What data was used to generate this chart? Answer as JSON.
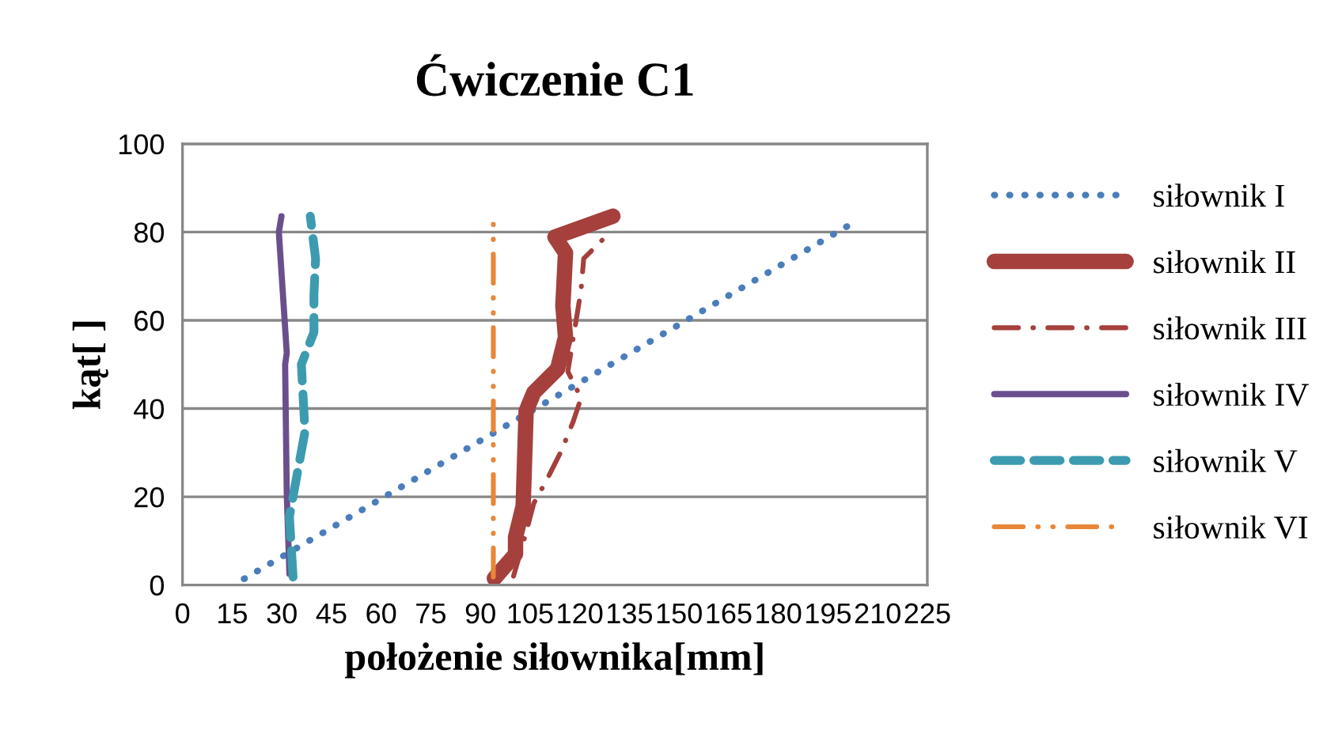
{
  "chart_data": {
    "type": "line",
    "title": "Ćwiczenie C1",
    "xlabel": "położenie siłownika[mm]",
    "ylabel": "kąt[ ]",
    "xlim": [
      0,
      225
    ],
    "xticks": [
      0,
      15,
      30,
      45,
      60,
      75,
      90,
      105,
      120,
      135,
      150,
      165,
      180,
      195,
      210,
      225
    ],
    "ylim": [
      0,
      100
    ],
    "yticks": [
      0,
      20,
      40,
      60,
      80,
      100
    ],
    "grid": "y",
    "legend": "right",
    "marker": "none",
    "series": [
      {
        "name": "siłownik I",
        "color": "#4a7ebb",
        "line_style": "dotted",
        "x": [
          18.6,
          203.5
        ],
        "values": [
          1.4,
          82.5
        ]
      },
      {
        "name": "siłownik II",
        "color": "#a5403d",
        "line_style": "solid",
        "x": [
          94.2,
          100.6,
          100.6,
          102.9,
          103.8,
          106.1,
          113.3,
          115.7,
          114.9,
          115.7,
          112.5,
          130
        ],
        "values": [
          1.5,
          7,
          10.8,
          17.9,
          39.4,
          43.6,
          49,
          56.2,
          63.3,
          75.3,
          78.9,
          83.6
        ]
      },
      {
        "name": "siłownik III",
        "color": "#a5403d",
        "line_style": "dashdot",
        "x": [
          100,
          103.8,
          106.1,
          110.1,
          114.5,
          118,
          120.4,
          116.4,
          120.4,
          121.2,
          126.8
        ],
        "values": [
          2,
          11.9,
          18.5,
          23.9,
          30.5,
          37,
          42.4,
          48.4,
          66.9,
          74,
          78.2
        ]
      },
      {
        "name": "siłownik IV",
        "color": "#6a4f8e",
        "line_style": "solid",
        "x": [
          32.3,
          31.5,
          31,
          31.5,
          29.1,
          29.9
        ],
        "values": [
          2.5,
          20.4,
          50,
          52.6,
          80,
          83.6
        ]
      },
      {
        "name": "siłownik V",
        "color": "#3d9bb0",
        "line_style": "dashed",
        "x": [
          33.4,
          32.3,
          34.6,
          37,
          35.9,
          39.7,
          39.7,
          40.2,
          38.6
        ],
        "values": [
          1.8,
          15.5,
          25,
          34.8,
          50,
          57.3,
          65.7,
          74,
          83.6
        ]
      },
      {
        "name": "siłownik VI",
        "color": "#e8873a",
        "line_style": "dashdotdot",
        "x": [
          93.9,
          93.9
        ],
        "values": [
          1.8,
          83.6
        ]
      }
    ]
  }
}
